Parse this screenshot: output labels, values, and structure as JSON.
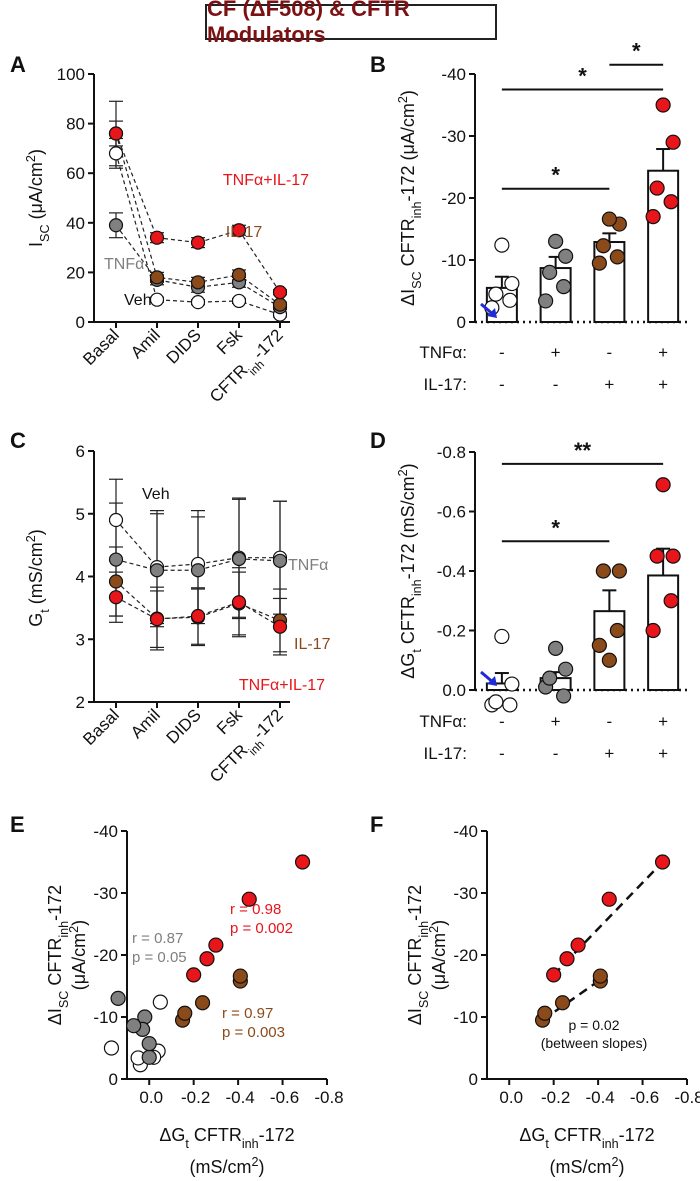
{
  "title": "CF (ΔF508) & CFTR Modulators",
  "colors": {
    "veh": "#ffffff",
    "tnf": "#808080",
    "il17": "#8b4a1a",
    "both": "#e8151b",
    "il17_text": "#8b4a1a",
    "tnf_text": "#7f7f7f",
    "arrow": "#1f2bd6"
  },
  "chart_data": [
    {
      "panel": "A",
      "type": "line",
      "categories": [
        "Basal",
        "Amil",
        "DIDS",
        "Fsk",
        "CFTRinh-172"
      ],
      "ylabel": "ISC (μA/cm2)",
      "ylim": [
        0,
        100
      ],
      "yticks": [
        0,
        20,
        40,
        60,
        80,
        100
      ],
      "series": [
        {
          "name": "Veh",
          "values": [
            68,
            9,
            8,
            8.5,
            3
          ],
          "err": [
            6,
            1,
            1,
            1,
            1
          ],
          "label_idx": 1
        },
        {
          "name": "TNFα",
          "values": [
            39,
            17,
            14,
            16,
            6
          ],
          "err": [
            5,
            2,
            2,
            2,
            1
          ],
          "label_idx": 0
        },
        {
          "name": "IL-17",
          "values": [
            76,
            18,
            16,
            19,
            7
          ],
          "err": [
            13,
            2,
            2,
            2,
            1
          ],
          "label_idx": 2
        },
        {
          "name": "TNFα+IL-17",
          "values": [
            76,
            34,
            32,
            37,
            12
          ],
          "err": [
            5,
            2,
            2,
            2,
            1
          ],
          "label_idx": 3
        }
      ]
    },
    {
      "panel": "B",
      "type": "bar",
      "ylabel": "ΔISC CFTRinh-172 (μA/cm2)",
      "ylim": [
        0,
        -40
      ],
      "yticks": [
        0,
        -10,
        -20,
        -30,
        -40
      ],
      "tnf_row_label": "TNFα:",
      "il17_row_label": "IL-17:",
      "tnf": [
        "-",
        "+",
        "-",
        "+"
      ],
      "il17": [
        "-",
        "-",
        "+",
        "+"
      ],
      "bars": [
        {
          "mean": -5.5,
          "sem": 1.8,
          "points": [
            -2.3,
            -3.5,
            -4.5,
            -6.2,
            -12.4
          ]
        },
        {
          "mean": -8.7,
          "sem": 1.8,
          "points": [
            -3.4,
            -5.7,
            -8,
            -10.6,
            -13
          ]
        },
        {
          "mean": -12.9,
          "sem": 1.4,
          "points": [
            -9.5,
            -10.5,
            -12.3,
            -15.8,
            -16.6
          ]
        },
        {
          "mean": -24.4,
          "sem": 3.5,
          "points": [
            -17,
            -19.4,
            -21.6,
            -29,
            -35
          ]
        }
      ],
      "sig": [
        {
          "from": 0,
          "to": 3,
          "label": "*",
          "y": -37.5
        },
        {
          "from": 2,
          "to": 3,
          "label": "*",
          "y": -41.5
        },
        {
          "from": 0,
          "to": 2,
          "label": "*",
          "y": -21.5
        }
      ]
    },
    {
      "panel": "C",
      "type": "line",
      "categories": [
        "Basal",
        "Amil",
        "DIDS",
        "Fsk",
        "CFTRinh-172"
      ],
      "ylabel": "Gt (mS/cm2)",
      "ylim": [
        2,
        6
      ],
      "yticks": [
        2,
        3,
        4,
        5,
        6
      ],
      "series": [
        {
          "name": "Veh",
          "values": [
            4.9,
            4.15,
            4.2,
            4.3,
            4.3
          ],
          "err": [
            0.65,
            0.9,
            0.85,
            0.95,
            0.9
          ]
        },
        {
          "name": "TNFα",
          "values": [
            4.27,
            4.1,
            4.1,
            4.28,
            4.25
          ],
          "err": [
            0.9,
            0.9,
            0.85,
            0.95,
            0.95
          ]
        },
        {
          "name": "IL-17",
          "values": [
            3.92,
            3.33,
            3.35,
            3.57,
            3.3
          ],
          "err": [
            0.55,
            0.5,
            0.45,
            0.5,
            0.5
          ]
        },
        {
          "name": "TNFα+IL-17",
          "values": [
            3.67,
            3.32,
            3.37,
            3.59,
            3.2
          ],
          "err": [
            0.4,
            0.45,
            0.45,
            0.55,
            0.45
          ]
        }
      ]
    },
    {
      "panel": "D",
      "type": "bar",
      "ylabel": "ΔGt CFTRinh-172 (mS/cm2)",
      "ylim": [
        0,
        -0.8
      ],
      "yticks": [
        0,
        -0.2,
        -0.4,
        -0.6,
        -0.8
      ],
      "tnf_row_label": "TNFα:",
      "il17_row_label": "IL-17:",
      "tnf": [
        "-",
        "+",
        "-",
        "+"
      ],
      "il17": [
        "-",
        "-",
        "+",
        "+"
      ],
      "bars": [
        {
          "mean": -0.022,
          "sem": 0.035,
          "points": [
            0.05,
            0.05,
            0.04,
            -0.02,
            -0.18
          ]
        },
        {
          "mean": -0.04,
          "sem": 0.02,
          "points": [
            -0.01,
            0.02,
            -0.04,
            -0.07,
            -0.14
          ]
        },
        {
          "mean": -0.265,
          "sem": 0.07,
          "points": [
            -0.15,
            -0.2,
            -0.4,
            -0.4,
            -0.1
          ]
        },
        {
          "mean": -0.385,
          "sem": 0.09,
          "points": [
            -0.2,
            -0.3,
            -0.45,
            -0.45,
            -0.69
          ]
        }
      ],
      "sig": [
        {
          "from": 0,
          "to": 2,
          "label": "*",
          "y": -0.5
        },
        {
          "from": 0,
          "to": 3,
          "label": "**",
          "y": -0.76
        }
      ]
    },
    {
      "panel": "E",
      "type": "scatter",
      "xlabel": "ΔGt CFTRinh-172",
      "xunit": "(mS/cm2)",
      "ylabel": "ΔISC CFTRinh-172",
      "yunit": "(μA/cm2)",
      "xlim": [
        0.1,
        -0.8
      ],
      "ylim": [
        0,
        -40
      ],
      "xticks": [
        0,
        -0.2,
        -0.4,
        -0.6,
        -0.8
      ],
      "yticks": [
        0,
        -10,
        -20,
        -30,
        -40
      ],
      "series": [
        {
          "name": "Veh",
          "stat_r": "",
          "stat_p": "",
          "points": [
            [
              -0.05,
              -12.4
            ],
            [
              -0.04,
              -4.5
            ],
            [
              -0.02,
              -3.5
            ],
            [
              0.04,
              -2.3
            ],
            [
              0.05,
              -3.4
            ],
            [
              0.17,
              -5
            ]
          ]
        },
        {
          "name": "TNFα",
          "stat_r": "r = 0.87",
          "stat_p": "p = 0.05",
          "points": [
            [
              0.0,
              -3.5
            ],
            [
              0.02,
              -10
            ],
            [
              0.03,
              -8
            ],
            [
              0.07,
              -8.6
            ],
            [
              0.14,
              -13
            ],
            [
              0.0,
              -5.7
            ]
          ]
        },
        {
          "name": "IL-17",
          "stat_r": "r = 0.97",
          "stat_p": "p = 0.003",
          "points": [
            [
              -0.15,
              -9.5
            ],
            [
              -0.16,
              -10.6
            ],
            [
              -0.24,
              -12.3
            ],
            [
              -0.41,
              -15.8
            ],
            [
              -0.41,
              -16.6
            ]
          ]
        },
        {
          "name": "TNFα+IL-17",
          "stat_r": "r = 0.98",
          "stat_p": "p = 0.002",
          "points": [
            [
              -0.2,
              -16.8
            ],
            [
              -0.3,
              -21.6
            ],
            [
              -0.45,
              -29
            ],
            [
              -0.69,
              -35
            ],
            [
              -0.26,
              -19.4
            ]
          ]
        }
      ]
    },
    {
      "panel": "F",
      "type": "scatter",
      "xlabel": "ΔGt CFTRinh-172",
      "xunit": "(mS/cm2)",
      "ylabel": "ΔISC CFTRinh-172",
      "yunit": "(μA/cm2)",
      "xlim": [
        0.1,
        -0.8
      ],
      "ylim": [
        0,
        -40
      ],
      "xticks": [
        0,
        -0.2,
        -0.4,
        -0.6,
        -0.8
      ],
      "yticks": [
        0,
        -10,
        -20,
        -30,
        -40
      ],
      "annotation": "p = 0.02",
      "annotation2": "(between slopes)",
      "series": [
        {
          "name": "IL-17",
          "points": [
            [
              -0.15,
              -9.5
            ],
            [
              -0.16,
              -10.6
            ],
            [
              -0.24,
              -12.3
            ],
            [
              -0.41,
              -15.8
            ],
            [
              -0.41,
              -16.6
            ]
          ],
          "fit": [
            [
              -0.15,
              -9.5
            ],
            [
              -0.41,
              -16
            ]
          ]
        },
        {
          "name": "TNFα+IL-17",
          "points": [
            [
              -0.2,
              -16.8
            ],
            [
              -0.26,
              -19.4
            ],
            [
              -0.31,
              -21.6
            ],
            [
              -0.45,
              -29
            ],
            [
              -0.69,
              -35
            ]
          ],
          "fit": [
            [
              -0.2,
              -16.8
            ],
            [
              -0.69,
              -35
            ]
          ]
        }
      ]
    }
  ]
}
